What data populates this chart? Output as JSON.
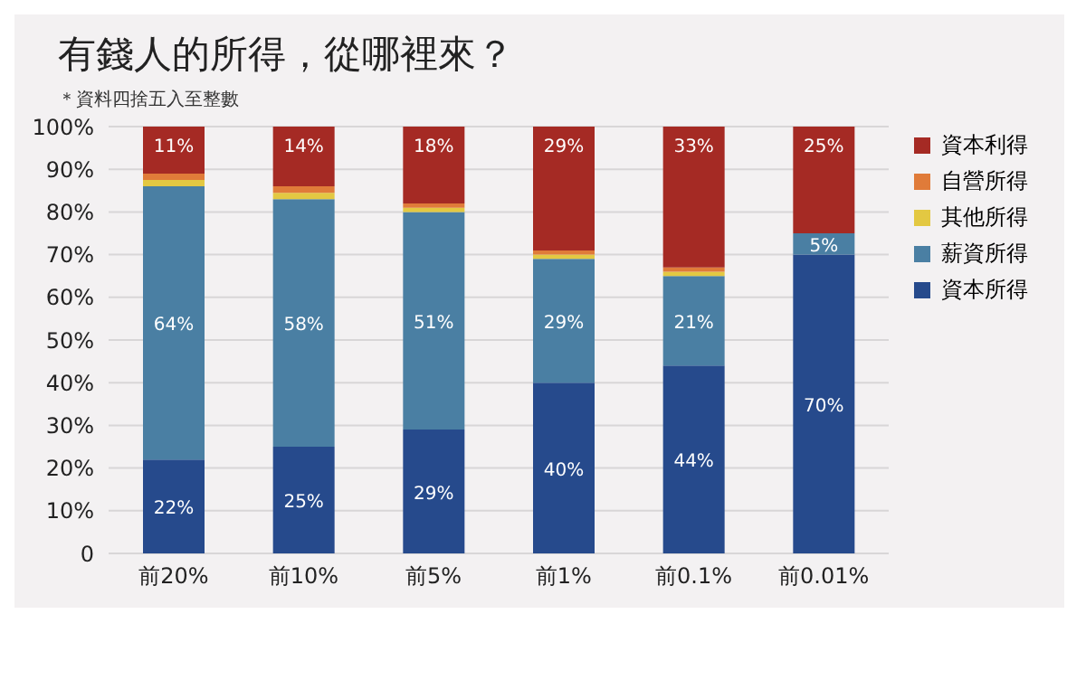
{
  "chart_data": {
    "type": "bar",
    "title": "有錢人的所得，從哪裡來？",
    "subtitle": "＊資料四捨五入至整數",
    "categories": [
      "前20%",
      "前10%",
      "前5%",
      "前1%",
      "前0.1%",
      "前0.01%"
    ],
    "stacked": true,
    "series": [
      {
        "name": "資本所得",
        "color": "#264a8c",
        "values": [
          22,
          25,
          29,
          40,
          44,
          70
        ],
        "value_labels": [
          "22%",
          "25%",
          "29%",
          "40%",
          "44%",
          "70%"
        ]
      },
      {
        "name": "薪資所得",
        "color": "#4a7fa3",
        "values": [
          64,
          58,
          51,
          29,
          21,
          5
        ],
        "value_labels": [
          "64%",
          "58%",
          "51%",
          "29%",
          "21%",
          "5%"
        ]
      },
      {
        "name": "其他所得",
        "color": "#e3c842",
        "values": [
          1.5,
          1.5,
          1,
          1,
          1,
          0
        ]
      },
      {
        "name": "自營所得",
        "color": "#e07b39",
        "values": [
          1.5,
          1.5,
          1,
          1,
          1,
          0
        ]
      },
      {
        "name": "資本利得",
        "color": "#a52a24",
        "values": [
          11,
          14,
          18,
          29,
          33,
          25
        ],
        "value_labels": [
          "11%",
          "14%",
          "18%",
          "29%",
          "33%",
          "25%"
        ]
      }
    ],
    "ylim": [
      0,
      100
    ],
    "yticks": [
      {
        "value": 0,
        "label": "0"
      },
      {
        "value": 10,
        "label": "10%"
      },
      {
        "value": 20,
        "label": "20%"
      },
      {
        "value": 30,
        "label": "30%"
      },
      {
        "value": 40,
        "label": "40%"
      },
      {
        "value": 50,
        "label": "50%"
      },
      {
        "value": 60,
        "label": "60%"
      },
      {
        "value": 70,
        "label": "70%"
      },
      {
        "value": 80,
        "label": "80%"
      },
      {
        "value": 90,
        "label": "90%"
      },
      {
        "value": 100,
        "label": "100%"
      }
    ],
    "grid": "y",
    "legend": "top right"
  }
}
